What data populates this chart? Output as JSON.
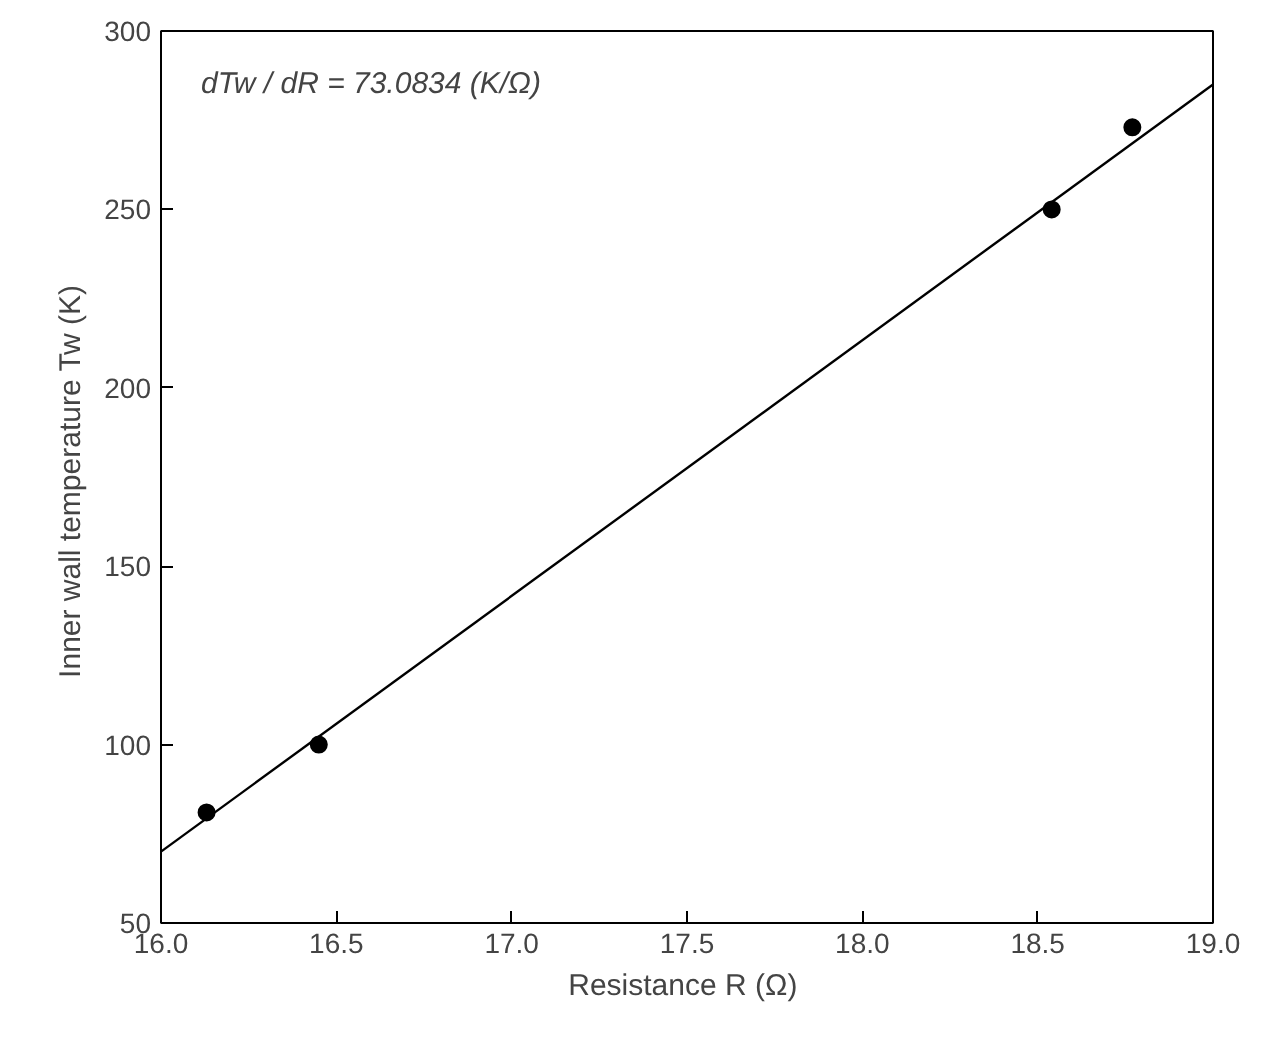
{
  "chart_data": {
    "type": "scatter",
    "xlabel": "Resistance R  (Ω)",
    "ylabel": "Inner wall temperature Tw  (K)",
    "annotations": [
      "dTw / dR = 73.0834 (K/Ω)"
    ],
    "series": [
      {
        "color": "#000000",
        "marker": "circle",
        "x": [
          16.13,
          16.45,
          18.54,
          18.77
        ],
        "values": [
          81,
          100,
          250,
          273
        ]
      },
      {
        "type": "line",
        "color": "#000000",
        "line_style": "solid",
        "x": [
          16.0,
          19.0
        ],
        "values": [
          70,
          285
        ]
      }
    ],
    "xlim": [
      16.0,
      19.0
    ],
    "xticks": [
      {
        "value": 16,
        "label": "16.0"
      },
      {
        "value": 16.5,
        "label": "16.5"
      },
      {
        "value": 17,
        "label": "17.0"
      },
      {
        "value": 17.5,
        "label": "17.5"
      },
      {
        "value": 18,
        "label": "18.0"
      },
      {
        "value": 18.5,
        "label": "18.5"
      },
      {
        "value": 19,
        "label": "19.0"
      }
    ],
    "ylim": [
      50,
      300
    ],
    "yticks": [
      50,
      100,
      150,
      200,
      250,
      300
    ],
    "grid": false
  }
}
